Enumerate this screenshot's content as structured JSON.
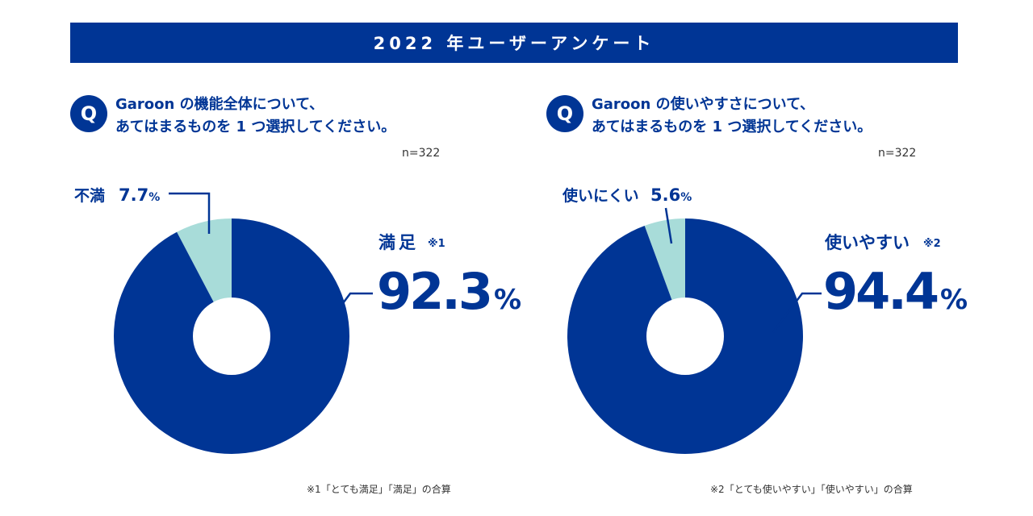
{
  "banner": {
    "title": "2022 年ユーザーアンケート"
  },
  "colors": {
    "primary": "#003595",
    "secondary": "#a8dcd9"
  },
  "icons": {
    "question": "Q"
  },
  "chart_data": [
    {
      "type": "pie",
      "donut": true,
      "question": [
        "Garoon の機能全体について、",
        "あてはまるものを 1 つ選択してください。"
      ],
      "n_label": "n=322",
      "slices": [
        {
          "label": "不満",
          "value": 7.7,
          "value_text": "7.7",
          "unit": "%",
          "color": "#a8dcd9"
        },
        {
          "label": "満足",
          "note": "※1",
          "value": 92.3,
          "value_text": "92.3",
          "unit": "%",
          "color": "#003595"
        }
      ],
      "footnote": "※1「とても満足」「満足」の合算"
    },
    {
      "type": "pie",
      "donut": true,
      "question": [
        "Garoon の使いやすさについて、",
        "あてはまるものを 1 つ選択してください。"
      ],
      "n_label": "n=322",
      "slices": [
        {
          "label": "使いにくい",
          "value": 5.6,
          "value_text": "5.6",
          "unit": "%",
          "color": "#a8dcd9"
        },
        {
          "label": "使いやすい",
          "note": "※2",
          "value": 94.4,
          "value_text": "94.4",
          "unit": "%",
          "color": "#003595"
        }
      ],
      "footnote": "※2「とても使いやすい」「使いやすい」の合算"
    }
  ]
}
